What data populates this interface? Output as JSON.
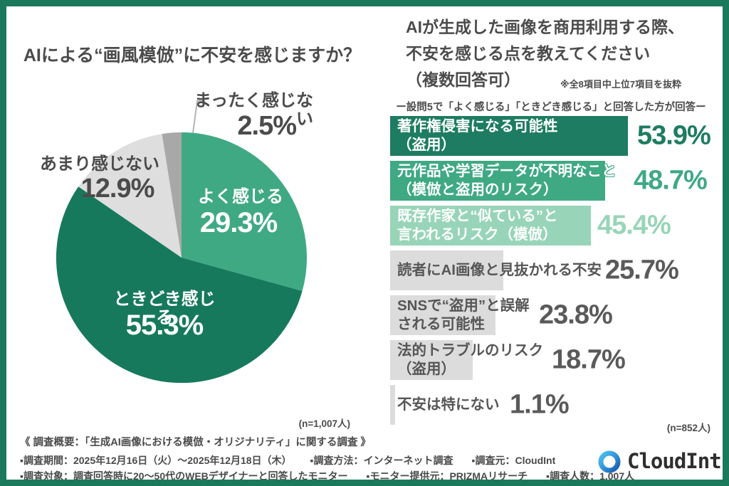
{
  "frame": {
    "color": "#1a795b"
  },
  "chart_data": [
    {
      "type": "pie",
      "title": "AIによる“画風模倣”に不安を感じますか？",
      "n_label": "(n=1,007人)",
      "start_angle_deg": -90,
      "direction": "clockwise",
      "segments": [
        {
          "label": "よく感じる",
          "value": 29.3,
          "pct": "29.3%",
          "color": "#3fa984"
        },
        {
          "label": "ときどき感じる",
          "value": 55.3,
          "pct": "55.3%",
          "color": "#17795c"
        },
        {
          "label": "あまり感じない",
          "value": 12.9,
          "pct": "12.9%",
          "color": "#dedede"
        },
        {
          "label": "まったく感じない",
          "value": 2.5,
          "pct": "2.5%",
          "color": "#a8a8a8"
        }
      ]
    },
    {
      "type": "bar",
      "title_lines": [
        "AIが生成した画像を商用利用する際、",
        "不安を感じる点を教えてください",
        "（複数回答可）"
      ],
      "note": "※全8項目中上位7項目を抜粋",
      "subtitle": "ー設問5で「よく感じる」「ときどき感じる」と回答した方が回答ー",
      "n_label": "(n=852人)",
      "xlim": [
        0,
        60
      ],
      "unit": "%",
      "items": [
        {
          "label_lines": [
            "著作権侵害になる可能性",
            "（盗用）"
          ],
          "value": 53.9,
          "pct": "53.9%",
          "bar_color": "#1d7c61",
          "label_color": "#ffffff",
          "pct_color": "#1d7c61"
        },
        {
          "label_lines": [
            "元作品や学習データが不明なこと",
            "（模倣と盗用のリスク）"
          ],
          "value": 48.7,
          "pct": "48.7%",
          "bar_color": "#3fa984",
          "label_color": "#ffffff",
          "pct_color": "#3fa984"
        },
        {
          "label_lines": [
            "既存作家と“似ている”と",
            "言われるリスク（模倣）"
          ],
          "value": 45.4,
          "pct": "45.4%",
          "bar_color": "#98d5b8",
          "label_color": "#ffffff",
          "pct_color": "#98d5b8"
        },
        {
          "label_lines": [
            "読者にAI画像と見抜かれる不安"
          ],
          "value": 25.7,
          "pct": "25.7%",
          "bar_color": "#dcdcdc",
          "label_color": "#565656",
          "pct_color": "#5a5a5a"
        },
        {
          "label_lines": [
            "SNSで“盗用”と誤解",
            "される可能性"
          ],
          "value": 23.8,
          "pct": "23.8%",
          "bar_color": "#dcdcdc",
          "label_color": "#565656",
          "pct_color": "#5a5a5a"
        },
        {
          "label_lines": [
            "法的トラブルのリスク",
            "（盗用）"
          ],
          "value": 18.7,
          "pct": "18.7%",
          "bar_color": "#dcdcdc",
          "label_color": "#565656",
          "pct_color": "#5a5a5a"
        },
        {
          "label_lines": [
            "不安は特にない"
          ],
          "value": 1.1,
          "pct": "1.1%",
          "bar_color": "#dcdcdc",
          "label_color": "#565656",
          "pct_color": "#5a5a5a"
        }
      ]
    }
  ],
  "footer": {
    "heading": "《 調査概要：「生成AI画像における模倣・オリジナリティ」に関する調査 》",
    "lines": [
      [
        "▪調査期間：2025年12月16日（火）〜2025年12月18日（木）",
        "▪調査方法：インターネット調査",
        "▪調査元：CloudInt"
      ],
      [
        "▪調査対象：調査回答時に20〜50代のWEBデザイナーと回答したモニター",
        "▪モニター提供元：PRIZMAリサーチ",
        "▪調査人数：1,007人"
      ]
    ]
  },
  "logo": {
    "name": "CloudInt"
  }
}
